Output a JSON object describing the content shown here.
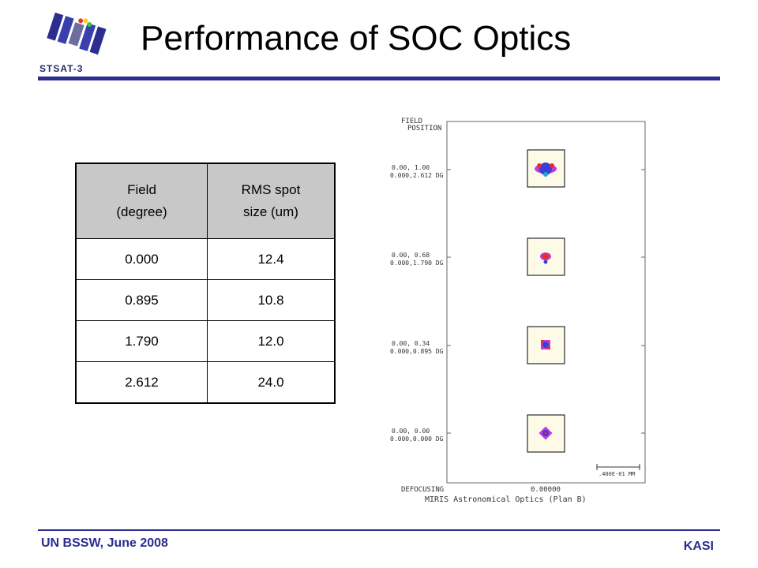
{
  "logo": {
    "caption": "STSAT-3"
  },
  "title": "Performance of SOC Optics",
  "table": {
    "headers": [
      {
        "line1": "Field",
        "line2": "(degree)"
      },
      {
        "line1": "RMS spot",
        "line2": "size (um)"
      }
    ],
    "rows": [
      [
        "0.000",
        "12.4"
      ],
      [
        "0.895",
        "10.8"
      ],
      [
        "1.790",
        "12.0"
      ],
      [
        "2.612",
        "24.0"
      ]
    ]
  },
  "plot": {
    "header_line1": "FIELD",
    "header_line2": "POSITION",
    "fields": [
      {
        "line1": "0.00, 1.00",
        "line2": "0.000,2.612 DG"
      },
      {
        "line1": "0.00, 0.68",
        "line2": "0.000,1.790 DG"
      },
      {
        "line1": "0.00, 0.34",
        "line2": "0.000,0.895 DG"
      },
      {
        "line1": "0.00, 0.00",
        "line2": "0.000,0.000 DG"
      }
    ],
    "scale_label": ".400E-01 MM",
    "defocusing_label": "DEFOCUSING",
    "defocusing_value": "0.00000",
    "caption": "MIRIS Astronomical Optics (Plan B)"
  },
  "footer": {
    "left": "UN BSSW, June 2008",
    "right": "KASI"
  },
  "colors": {
    "accent": "#2b2d8f"
  }
}
